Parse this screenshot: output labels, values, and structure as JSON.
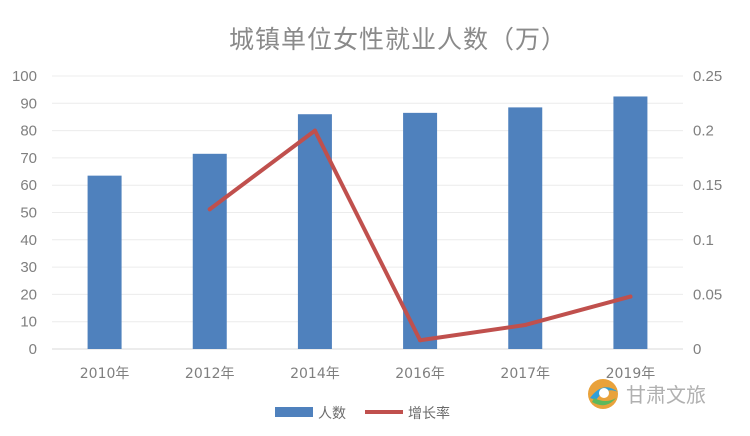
{
  "chart_data": {
    "type": "bar",
    "title": "城镇单位女性就业人数（万）",
    "categories": [
      "2010年",
      "2012年",
      "2014年",
      "2016年",
      "2017年",
      "2019年"
    ],
    "series": [
      {
        "name": "人数",
        "type": "bar",
        "axis": "left",
        "color": "#4f81bd",
        "values": [
          63.5,
          71.5,
          86,
          86.5,
          88.5,
          92.5
        ]
      },
      {
        "name": "增长率",
        "type": "line",
        "axis": "right",
        "color": "#c0504d",
        "values": [
          null,
          0.128,
          0.2,
          0.008,
          0.022,
          0.048
        ]
      }
    ],
    "ylim_left": [
      0,
      100
    ],
    "yticks_left": [
      "0",
      "10",
      "20",
      "30",
      "40",
      "50",
      "60",
      "70",
      "80",
      "90",
      "100"
    ],
    "ylim_right": [
      0,
      0.25
    ],
    "yticks_right": [
      "0",
      "0.05",
      "0.1",
      "0.15",
      "0.2",
      "0.25"
    ],
    "grid": true,
    "legend_position": "bottom"
  },
  "watermark": {
    "text": "甘肃文旅"
  }
}
